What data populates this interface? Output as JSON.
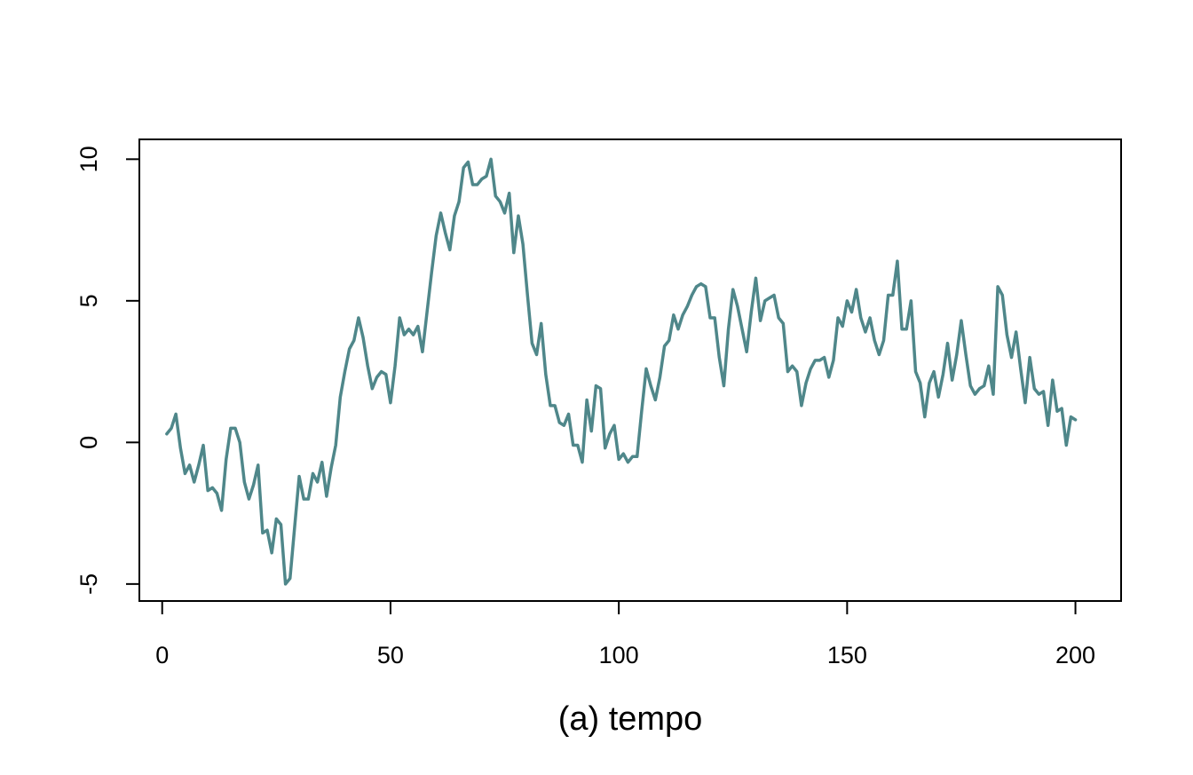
{
  "chart_data": {
    "type": "line",
    "title": "",
    "xlabel": "(a) tempo",
    "ylabel": "",
    "xlim": [
      -5,
      210
    ],
    "ylim": [
      -5.6,
      10.7
    ],
    "xticks": [
      0,
      50,
      100,
      150,
      200
    ],
    "yticks": [
      -5,
      0,
      5,
      10
    ],
    "grid": false,
    "colors": {
      "line": "#4f878a",
      "axis": "#000000",
      "background": "#ffffff"
    },
    "series": [
      {
        "x": [
          1,
          2,
          3,
          4,
          5,
          6,
          7,
          8,
          9,
          10,
          11,
          12,
          13,
          14,
          15,
          16,
          17,
          18,
          19,
          20,
          21,
          22,
          23,
          24,
          25,
          26,
          27,
          28,
          29,
          30,
          31,
          32,
          33,
          34,
          35,
          36,
          37,
          38,
          39,
          40,
          41,
          42,
          43,
          44,
          45,
          46,
          47,
          48,
          49,
          50,
          51,
          52,
          53,
          54,
          55,
          56,
          57,
          58,
          59,
          60,
          61,
          62,
          63,
          64,
          65,
          66,
          67,
          68,
          69,
          70,
          71,
          72,
          73,
          74,
          75,
          76,
          77,
          78,
          79,
          80,
          81,
          82,
          83,
          84,
          85,
          86,
          87,
          88,
          89,
          90,
          91,
          92,
          93,
          94,
          95,
          96,
          97,
          98,
          99,
          100,
          101,
          102,
          103,
          104,
          105,
          106,
          107,
          108,
          109,
          110,
          111,
          112,
          113,
          114,
          115,
          116,
          117,
          118,
          119,
          120,
          121,
          122,
          123,
          124,
          125,
          126,
          127,
          128,
          129,
          130,
          131,
          132,
          133,
          134,
          135,
          136,
          137,
          138,
          139,
          140,
          141,
          142,
          143,
          144,
          145,
          146,
          147,
          148,
          149,
          150,
          151,
          152,
          153,
          154,
          155,
          156,
          157,
          158,
          159,
          160,
          161,
          162,
          163,
          164,
          165,
          166,
          167,
          168,
          169,
          170,
          171,
          172,
          173,
          174,
          175,
          176,
          177,
          178,
          179,
          180,
          181,
          182,
          183,
          184,
          185,
          186,
          187,
          188,
          189,
          190,
          191,
          192,
          193,
          194,
          195,
          196,
          197,
          198,
          199,
          200
        ],
        "values": [
          0.3,
          0.5,
          1.0,
          -0.2,
          -1.1,
          -0.8,
          -1.4,
          -0.8,
          -0.1,
          -1.7,
          -1.6,
          -1.8,
          -2.4,
          -0.6,
          0.5,
          0.5,
          0.0,
          -1.4,
          -2.0,
          -1.5,
          -0.8,
          -3.2,
          -3.1,
          -3.9,
          -2.7,
          -2.9,
          -5.0,
          -4.8,
          -3.0,
          -1.2,
          -2.0,
          -2.0,
          -1.1,
          -1.4,
          -0.7,
          -1.9,
          -0.9,
          -0.1,
          1.6,
          2.5,
          3.3,
          3.6,
          4.4,
          3.7,
          2.7,
          1.9,
          2.3,
          2.5,
          2.4,
          1.4,
          2.7,
          4.4,
          3.8,
          4.0,
          3.8,
          4.1,
          3.2,
          4.6,
          6.0,
          7.3,
          8.1,
          7.4,
          6.8,
          8.0,
          8.5,
          9.7,
          9.9,
          9.1,
          9.1,
          9.3,
          9.4,
          10.0,
          8.7,
          8.5,
          8.1,
          8.8,
          6.7,
          8.0,
          7.0,
          5.2,
          3.5,
          3.1,
          4.2,
          2.4,
          1.3,
          1.3,
          0.7,
          0.6,
          1.0,
          -0.1,
          -0.1,
          -0.7,
          1.5,
          0.4,
          2.0,
          1.9,
          -0.2,
          0.3,
          0.6,
          -0.6,
          -0.4,
          -0.7,
          -0.5,
          -0.5,
          1.1,
          2.6,
          2.0,
          1.5,
          2.3,
          3.4,
          3.6,
          4.5,
          4.0,
          4.5,
          4.8,
          5.2,
          5.5,
          5.6,
          5.5,
          4.4,
          4.4,
          3.0,
          2.0,
          4.0,
          5.4,
          4.8,
          4.0,
          3.2,
          4.6,
          5.8,
          4.3,
          5.0,
          5.1,
          5.2,
          4.4,
          4.2,
          2.5,
          2.7,
          2.5,
          1.3,
          2.1,
          2.6,
          2.9,
          2.9,
          3.0,
          2.3,
          2.9,
          4.4,
          4.1,
          5.0,
          4.6,
          5.4,
          4.4,
          3.9,
          4.4,
          3.6,
          3.1,
          3.6,
          5.2,
          5.2,
          6.4,
          4.0,
          4.0,
          5.0,
          2.5,
          2.1,
          0.9,
          2.1,
          2.5,
          1.6,
          2.4,
          3.5,
          2.2,
          3.1,
          4.3,
          3.1,
          2.0,
          1.7,
          1.9,
          2.0,
          2.7,
          1.7,
          5.5,
          5.2,
          3.8,
          3.0,
          3.9,
          2.6,
          1.4,
          3.0,
          1.9,
          1.7,
          1.8,
          0.6,
          2.2,
          1.1,
          1.2,
          -0.1,
          0.9,
          0.8
        ]
      }
    ]
  }
}
